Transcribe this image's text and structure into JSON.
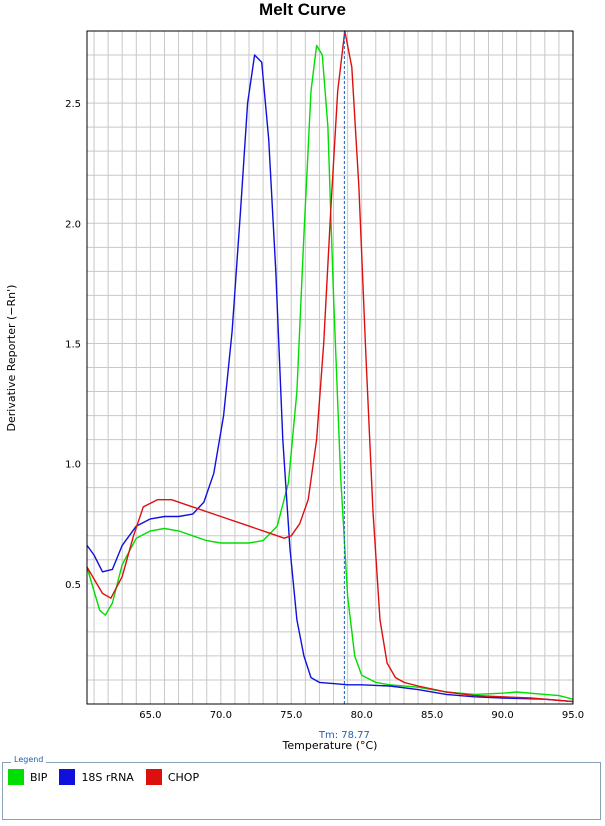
{
  "chart_data": {
    "type": "line",
    "title": "Melt Curve",
    "xlabel": "Temperature (°C)",
    "ylabel": "Derivative Reporter (−Rn')",
    "xlim": [
      60.5,
      95.0
    ],
    "ylim": [
      0.0,
      2.8
    ],
    "xticks": [
      "65.0",
      "70.0",
      "75.0",
      "80.0",
      "85.0",
      "90.0",
      "95.0"
    ],
    "yticks": [
      "0.5",
      "1.0",
      "1.5",
      "2.0",
      "2.5"
    ],
    "grid": true,
    "marker": {
      "label": "Tm: 78.77",
      "x": 78.77
    },
    "series": [
      {
        "name": "BIP",
        "color": "#00dd00",
        "points": [
          [
            60.5,
            0.57
          ],
          [
            61.0,
            0.47
          ],
          [
            61.4,
            0.39
          ],
          [
            61.8,
            0.37
          ],
          [
            62.3,
            0.42
          ],
          [
            63.0,
            0.58
          ],
          [
            64.0,
            0.69
          ],
          [
            65.0,
            0.72
          ],
          [
            66.0,
            0.73
          ],
          [
            67.0,
            0.72
          ],
          [
            68.0,
            0.7
          ],
          [
            69.0,
            0.68
          ],
          [
            70.0,
            0.67
          ],
          [
            71.0,
            0.67
          ],
          [
            72.0,
            0.67
          ],
          [
            73.0,
            0.68
          ],
          [
            74.0,
            0.74
          ],
          [
            74.8,
            0.92
          ],
          [
            75.4,
            1.3
          ],
          [
            75.9,
            1.95
          ],
          [
            76.4,
            2.55
          ],
          [
            76.8,
            2.74
          ],
          [
            77.2,
            2.7
          ],
          [
            77.6,
            2.4
          ],
          [
            78.0,
            1.7
          ],
          [
            78.5,
            0.95
          ],
          [
            79.0,
            0.45
          ],
          [
            79.5,
            0.2
          ],
          [
            80.0,
            0.12
          ],
          [
            81.0,
            0.09
          ],
          [
            82.0,
            0.08
          ],
          [
            84.0,
            0.07
          ],
          [
            86.0,
            0.05
          ],
          [
            88.0,
            0.04
          ],
          [
            90.0,
            0.045
          ],
          [
            91.0,
            0.05
          ],
          [
            93.0,
            0.04
          ],
          [
            94.0,
            0.035
          ],
          [
            95.0,
            0.02
          ]
        ]
      },
      {
        "name": "18S rRNA",
        "color": "#1010dd",
        "points": [
          [
            60.5,
            0.66
          ],
          [
            61.0,
            0.62
          ],
          [
            61.6,
            0.55
          ],
          [
            62.3,
            0.56
          ],
          [
            63.0,
            0.66
          ],
          [
            64.0,
            0.74
          ],
          [
            65.0,
            0.77
          ],
          [
            66.0,
            0.78
          ],
          [
            67.0,
            0.78
          ],
          [
            68.0,
            0.79
          ],
          [
            68.8,
            0.84
          ],
          [
            69.5,
            0.96
          ],
          [
            70.2,
            1.2
          ],
          [
            70.8,
            1.55
          ],
          [
            71.4,
            2.05
          ],
          [
            71.9,
            2.5
          ],
          [
            72.4,
            2.7
          ],
          [
            72.9,
            2.67
          ],
          [
            73.4,
            2.35
          ],
          [
            73.9,
            1.8
          ],
          [
            74.4,
            1.1
          ],
          [
            74.9,
            0.65
          ],
          [
            75.4,
            0.35
          ],
          [
            75.9,
            0.2
          ],
          [
            76.4,
            0.11
          ],
          [
            77.0,
            0.09
          ],
          [
            78.0,
            0.085
          ],
          [
            79.0,
            0.08
          ],
          [
            80.0,
            0.08
          ],
          [
            82.0,
            0.075
          ],
          [
            84.0,
            0.06
          ],
          [
            86.0,
            0.04
          ],
          [
            88.0,
            0.03
          ],
          [
            90.0,
            0.025
          ],
          [
            93.0,
            0.02
          ],
          [
            95.0,
            0.01
          ]
        ]
      },
      {
        "name": "CHOP",
        "color": "#dd1010",
        "points": [
          [
            60.5,
            0.57
          ],
          [
            61.0,
            0.52
          ],
          [
            61.6,
            0.46
          ],
          [
            62.2,
            0.44
          ],
          [
            63.0,
            0.53
          ],
          [
            63.8,
            0.7
          ],
          [
            64.5,
            0.82
          ],
          [
            65.5,
            0.85
          ],
          [
            66.5,
            0.85
          ],
          [
            68.0,
            0.82
          ],
          [
            70.0,
            0.78
          ],
          [
            72.0,
            0.74
          ],
          [
            73.5,
            0.71
          ],
          [
            74.5,
            0.69
          ],
          [
            75.0,
            0.7
          ],
          [
            75.6,
            0.75
          ],
          [
            76.2,
            0.85
          ],
          [
            76.8,
            1.1
          ],
          [
            77.3,
            1.5
          ],
          [
            77.8,
            2.05
          ],
          [
            78.3,
            2.55
          ],
          [
            78.8,
            2.8
          ],
          [
            79.3,
            2.65
          ],
          [
            79.8,
            2.15
          ],
          [
            80.3,
            1.45
          ],
          [
            80.8,
            0.8
          ],
          [
            81.3,
            0.35
          ],
          [
            81.8,
            0.17
          ],
          [
            82.4,
            0.11
          ],
          [
            83.0,
            0.09
          ],
          [
            84.0,
            0.075
          ],
          [
            86.0,
            0.05
          ],
          [
            88.0,
            0.035
          ],
          [
            90.0,
            0.03
          ],
          [
            92.0,
            0.025
          ],
          [
            95.0,
            0.01
          ]
        ]
      }
    ],
    "legend": {
      "title": "Legend",
      "position": "bottom"
    }
  }
}
